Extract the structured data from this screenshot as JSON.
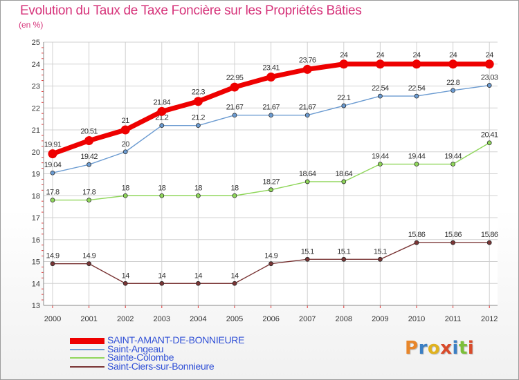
{
  "title": "Evolution du Taux de Taxe Foncière sur les Propriétés Bâties",
  "unit_label": "(en %)",
  "logo": {
    "text": "Proxiti",
    "colors": [
      "#e8862a",
      "#3b7fc4",
      "#e0b21f",
      "#d94b2b",
      "#3b7fc4",
      "#7cbf3a",
      "#d94b2b"
    ]
  },
  "colors": {
    "title": "#d6337a",
    "legend_text": "#2f4fd6",
    "axis_text": "#333333",
    "tick_red": "#e23535"
  },
  "chart_data": {
    "type": "line",
    "title": "Evolution du Taux de Taxe Foncière sur les Propriétés Bâties",
    "ylabel": "(en %)",
    "xlabel": "",
    "x": [
      "2000",
      "2001",
      "2002",
      "2003",
      "2004",
      "2005",
      "2006",
      "2007",
      "2008",
      "2009",
      "2010",
      "2011",
      "2012"
    ],
    "ylim": [
      13,
      25
    ],
    "yticks": [
      "13",
      "14",
      "15",
      "16",
      "17",
      "18",
      "19",
      "20",
      "21",
      "22",
      "23",
      "24",
      "25"
    ],
    "grid": true,
    "legend_position": "bottom-left",
    "series": [
      {
        "name": "SAINT-AMANT-DE-BONNIEURE",
        "color": "#ee0000",
        "values": [
          19.91,
          20.51,
          21,
          21.84,
          22.3,
          22.95,
          23.41,
          23.76,
          24,
          24,
          24,
          24,
          24
        ],
        "labels": [
          "19.91",
          "20.51",
          "21",
          "21.84",
          "22.3",
          "22.95",
          "23.41",
          "23.76",
          "24",
          "24",
          "24",
          "24",
          "24"
        ]
      },
      {
        "name": "Saint-Angeau",
        "color": "#6b9bd1",
        "values": [
          19.04,
          19.42,
          20,
          21.2,
          21.2,
          21.67,
          21.67,
          21.67,
          22.1,
          22.54,
          22.54,
          22.8,
          23.03
        ],
        "labels": [
          "19.04",
          "19.42",
          "20",
          "21.2",
          "21.2",
          "21.67",
          "21.67",
          "21.67",
          "22.1",
          "22.54",
          "22.54",
          "22.8",
          "23.03"
        ]
      },
      {
        "name": "Sainte-Colombe",
        "color": "#8fd65a",
        "values": [
          17.8,
          17.8,
          18,
          18,
          18,
          18,
          18.27,
          18.64,
          18.64,
          19.44,
          19.44,
          19.44,
          20.41
        ],
        "labels": [
          "17.8",
          "17.8",
          "18",
          "18",
          "18",
          "18",
          "18.27",
          "18.64",
          "18.64",
          "19.44",
          "19.44",
          "19.44",
          "20.41"
        ]
      },
      {
        "name": "Saint-Ciers-sur-Bonnieure",
        "color": "#7a3535",
        "values": [
          14.9,
          14.9,
          14,
          14,
          14,
          14,
          14.9,
          15.1,
          15.1,
          15.1,
          15.86,
          15.86,
          15.86
        ],
        "labels": [
          "14.9",
          "14.9",
          "14",
          "14",
          "14",
          "14",
          "14.9",
          "15.1",
          "15.1",
          "15.1",
          "15.86",
          "15.86",
          "15.86"
        ]
      }
    ]
  }
}
